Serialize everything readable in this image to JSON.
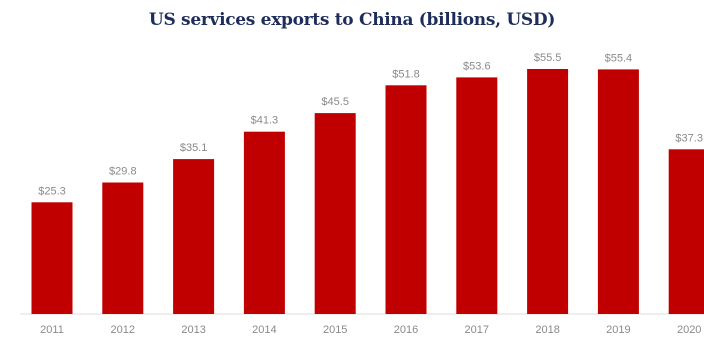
{
  "chart_data": {
    "type": "bar",
    "title": "US services exports to China (billions, USD)",
    "categories": [
      "2011",
      "2012",
      "2013",
      "2014",
      "2015",
      "2016",
      "2017",
      "2018",
      "2019",
      "2020"
    ],
    "values": [
      25.3,
      29.8,
      35.1,
      41.3,
      45.5,
      51.8,
      53.6,
      55.5,
      55.4,
      37.3
    ],
    "value_labels": [
      "$25.3",
      "$29.8",
      "$35.1",
      "$41.3",
      "$45.5",
      "$51.8",
      "$53.6",
      "$55.5",
      "$55.4",
      "$37.3"
    ],
    "xlabel": "",
    "ylabel": "",
    "ylim": [
      0,
      55.5
    ],
    "grid": false,
    "legend": "none",
    "bar_color": "#c00000"
  }
}
